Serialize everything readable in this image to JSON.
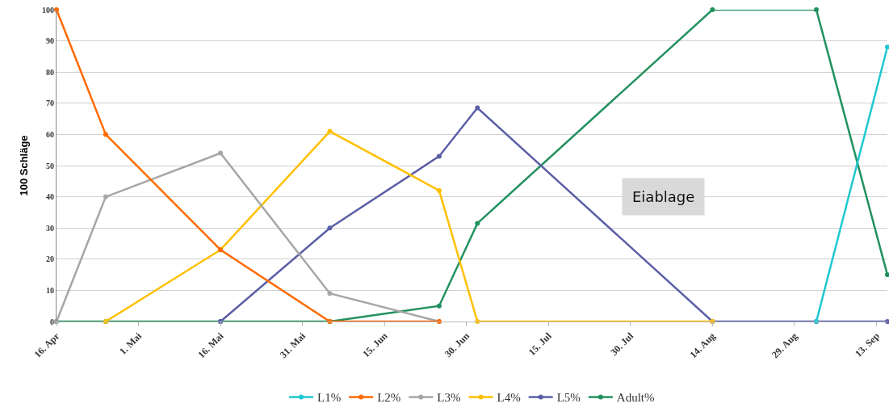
{
  "chart_data": {
    "type": "line",
    "ylabel": "100 Schläge",
    "x": [
      "--04-16",
      "--04-25",
      "--05-16",
      "--06-05",
      "--06-25",
      "--07-02",
      "--08-14",
      "--09-02",
      "--09-15"
    ],
    "series": [
      {
        "name": "L1%",
        "color": "#1fc8d0",
        "values": [
          null,
          null,
          null,
          null,
          null,
          null,
          null,
          0,
          88
        ]
      },
      {
        "name": "L2%",
        "color": "#ff6a00",
        "values": [
          100,
          60,
          23,
          0,
          0,
          null,
          null,
          null,
          null
        ]
      },
      {
        "name": "L3%",
        "color": "#a6a6a6",
        "values": [
          0,
          40,
          54,
          9,
          0,
          null,
          null,
          null,
          null
        ]
      },
      {
        "name": "L4%",
        "color": "#ffc000",
        "values": [
          null,
          0,
          23,
          61,
          42,
          0,
          0,
          null,
          null
        ]
      },
      {
        "name": "L5%",
        "color": "#5b5ea6",
        "values": [
          null,
          null,
          0,
          30,
          53,
          68.5,
          0,
          0,
          0
        ]
      },
      {
        "name": "Adult%",
        "color": "#22915e",
        "values": [
          0,
          0,
          0,
          0,
          5,
          31.5,
          100,
          100,
          15
        ]
      }
    ],
    "xlim": [
      "--04-16",
      "--09-15"
    ],
    "xticks": [
      {
        "value": "--04-16",
        "label": "16. Apr"
      },
      {
        "value": "--05-01",
        "label": "1. Mai"
      },
      {
        "value": "--05-16",
        "label": "16. Mai"
      },
      {
        "value": "--05-31",
        "label": "31. Mai"
      },
      {
        "value": "--06-15",
        "label": "15. Jun"
      },
      {
        "value": "--06-30",
        "label": "30. Jun"
      },
      {
        "value": "--07-15",
        "label": "15. Jul"
      },
      {
        "value": "--07-30",
        "label": "30. Jul"
      },
      {
        "value": "--08-14",
        "label": "14. Aug"
      },
      {
        "value": "--08-29",
        "label": "29. Aug"
      },
      {
        "value": "--09-13",
        "label": "13. Sep"
      }
    ],
    "ylim": [
      0,
      100
    ],
    "yticks": [
      0,
      10,
      20,
      30,
      40,
      50,
      60,
      70,
      80,
      90,
      100
    ],
    "annotations": [
      "Eiablage"
    ],
    "grid": "y",
    "legend": "bottom",
    "marker": "circle",
    "line_style": "solid"
  }
}
